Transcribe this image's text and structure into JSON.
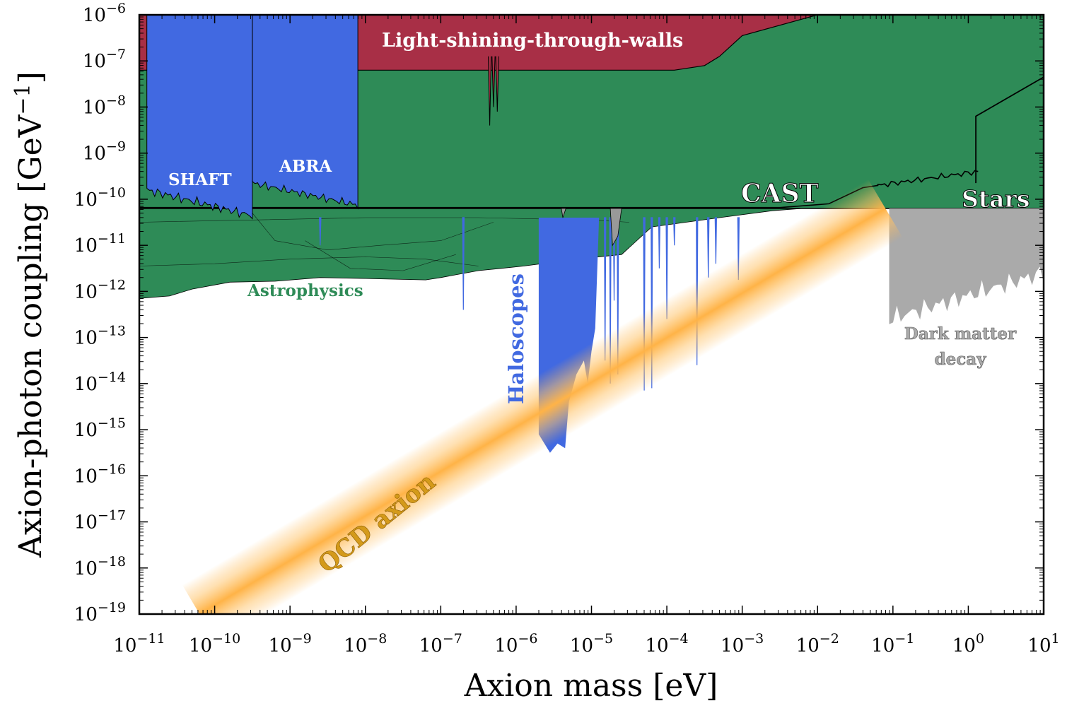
{
  "chart_data": {
    "type": "area",
    "xlabel": "Axion mass [eV]",
    "ylabel_main": "Axion-photon coupling [GeV",
    "ylabel_exp": "−1",
    "ylabel_close": "]",
    "x_log_range": [
      -11,
      1
    ],
    "y_log_range": [
      -19,
      -6
    ],
    "x_ticks": [
      -11,
      -10,
      -9,
      -8,
      -7,
      -6,
      -5,
      -4,
      -3,
      -2,
      -1,
      0,
      1
    ],
    "y_ticks": [
      -19,
      -18,
      -17,
      -16,
      -15,
      -14,
      -13,
      -12,
      -11,
      -10,
      -9,
      -8,
      -7,
      -6
    ],
    "tick_base": "10",
    "colors": {
      "lsw": "#a82f46",
      "stars": "#2e8b57",
      "astro": "#2e8b57",
      "haloscopes": "#4169e1",
      "dm_decay": "#aaaaaa",
      "qcd_core": "#ffb347",
      "qcd_label": "#d49a1a",
      "cast_line": "#000000"
    },
    "labels": {
      "lsw": "Light-shining-through-walls",
      "shaft": "SHAFT",
      "abra": "ABRA",
      "cast": "CAST",
      "stars": "Stars",
      "astrophysics": "Astrophysics",
      "haloscopes": "Haloscopes",
      "dm_decay_line1": "Dark matter",
      "dm_decay_line2": "decay",
      "qcd": "QCD axion"
    },
    "regions": {
      "lsw": {
        "log_mass": [
          -11,
          -2.0
        ],
        "log_g_bottom": -7.2,
        "log_g_top": -6
      },
      "cast": {
        "log_mass": [
          -11,
          -1.9
        ],
        "log_g": -10.18
      },
      "stars_edge": {
        "log_g": -10.2
      },
      "shaft": {
        "log_mass": [
          -10.9,
          -9.5
        ],
        "log_g_bottom": -10.3
      },
      "abra": {
        "log_mass": [
          -9.5,
          -8.1
        ],
        "log_g_bottom": -10.15
      },
      "astro_floor": {
        "log_g": -11.8
      },
      "haloscopes": {
        "log_mass": [
          -5.7,
          -4.9
        ],
        "log_g_bottom": -15.5
      },
      "dm_decay": {
        "log_mass": [
          -1,
          1
        ],
        "log_g_bottom": -12.7
      },
      "qcd_band": {
        "start": [
          -10.2,
          -19
        ],
        "end": [
          -1.1,
          -10.2
        ]
      }
    }
  }
}
